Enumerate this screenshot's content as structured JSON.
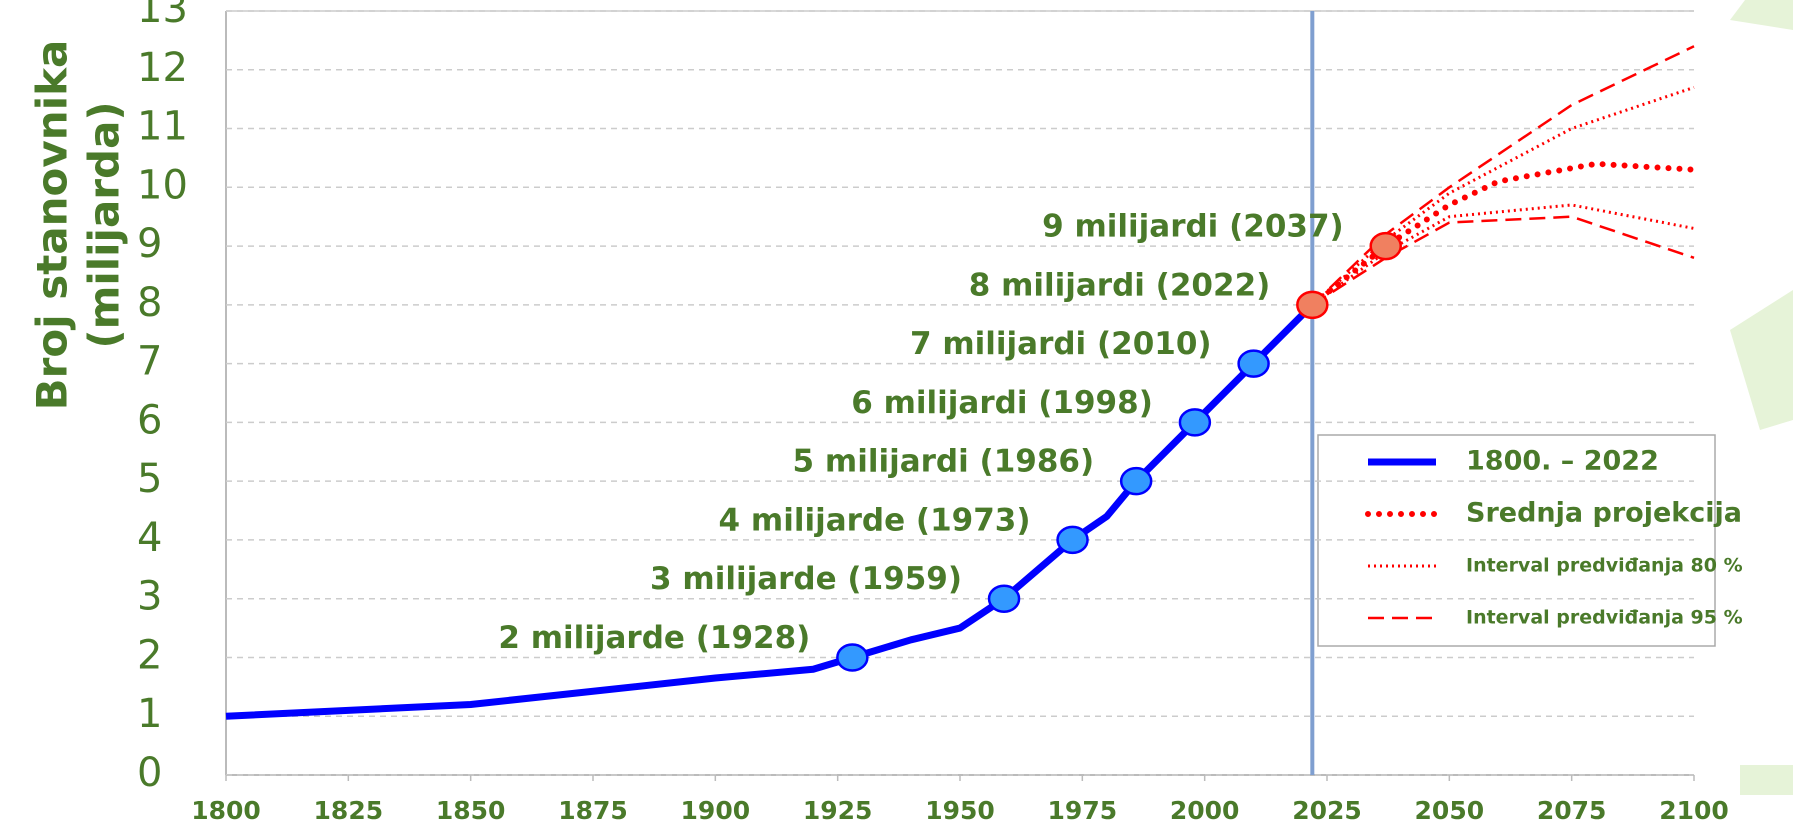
{
  "chart_data": {
    "type": "line",
    "ylabel": [
      "Broj stanovnika",
      "(milijarda)"
    ],
    "xlim": [
      1800,
      2100
    ],
    "xticks": [
      1800,
      1825,
      1850,
      1875,
      1900,
      1925,
      1950,
      1975,
      2000,
      2025,
      2050,
      2075,
      2100
    ],
    "ylim": [
      0,
      13
    ],
    "yticks": [
      0,
      1,
      2,
      3,
      4,
      5,
      6,
      7,
      8,
      9,
      10,
      11,
      12,
      13
    ],
    "grid": true,
    "reference_x": 2022,
    "reference_color": "#7f9fd0",
    "legend": "right",
    "series": [
      {
        "name": "1800. – 2022",
        "color": "#0000ff",
        "style": "solid",
        "x": [
          1800,
          1850,
          1900,
          1920,
          1928,
          1940,
          1950,
          1959,
          1973,
          1980,
          1986,
          1998,
          2010,
          2022
        ],
        "values": [
          1.0,
          1.2,
          1.65,
          1.8,
          2,
          2.3,
          2.5,
          3,
          4,
          4.4,
          5,
          6,
          7,
          8
        ]
      },
      {
        "name": "Srednja projekcija",
        "color": "#ff0000",
        "style": "dots",
        "x": [
          2022,
          2037,
          2050,
          2060,
          2080,
          2100
        ],
        "values": [
          8,
          9,
          9.7,
          10.1,
          10.4,
          10.3
        ]
      },
      {
        "name": "Interval predviđanja 80 %",
        "color": "#ff0000",
        "style": "dotted",
        "x": [
          2022,
          2037,
          2050,
          2075,
          2100
        ],
        "values": [
          8,
          9.1,
          9.9,
          11,
          11.7
        ],
        "lower": [
          8,
          8.9,
          9.5,
          9.7,
          9.3
        ]
      },
      {
        "name": "Interval predviđanja 95 %",
        "color": "#ff0000",
        "style": "dashed",
        "x": [
          2022,
          2037,
          2050,
          2075,
          2100
        ],
        "values": [
          8,
          9.2,
          10,
          11.4,
          12.4
        ],
        "lower": [
          8,
          8.8,
          9.4,
          9.5,
          8.8
        ]
      }
    ],
    "milestones": {
      "x": [
        1928,
        1959,
        1973,
        1986,
        1998,
        2010,
        2022,
        2037
      ],
      "values": [
        2,
        3,
        4,
        5,
        6,
        7,
        8,
        9
      ],
      "colors": [
        "#3399ff",
        "#3399ff",
        "#3399ff",
        "#3399ff",
        "#3399ff",
        "#3399ff",
        "#f08060",
        "#f08060"
      ],
      "labels": [
        "2 milijarde (1928)",
        "3 milijarde (1959)",
        "4 milijarde (1973)",
        "5 milijardi (1986)",
        "6 milijardi (1998)",
        "7 milijardi (2010)",
        "8 milijardi (2022)",
        "9 milijardi (2037)"
      ]
    }
  }
}
